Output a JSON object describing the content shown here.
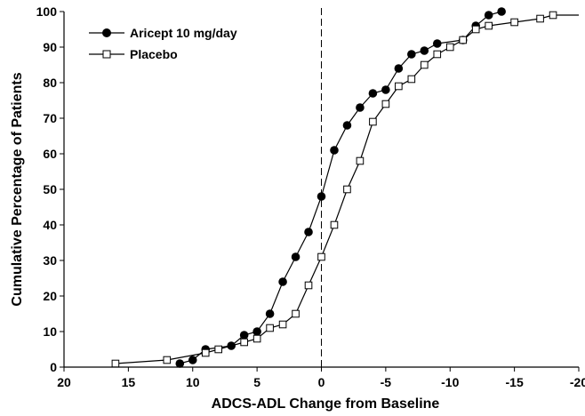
{
  "chart_data": {
    "type": "line",
    "xlabel": "ADCS-ADL Change from Baseline",
    "ylabel": "Cumulative Percentage of Patients",
    "xlim": [
      20,
      -20
    ],
    "ylim": [
      0,
      100
    ],
    "xticks": [
      20,
      15,
      10,
      5,
      0,
      -5,
      -10,
      -15,
      -20
    ],
    "yticks": [
      0,
      10,
      20,
      30,
      40,
      50,
      60,
      70,
      80,
      90,
      100
    ],
    "x_tick_labels": [
      "20",
      "15",
      "10",
      "5",
      "0",
      "-5",
      "-10",
      "-15",
      "-20"
    ],
    "y_tick_labels": [
      "0",
      "10",
      "20",
      "30",
      "40",
      "50",
      "60",
      "70",
      "80",
      "90",
      "100"
    ],
    "reference_line": {
      "x": 0,
      "style": "dashed"
    },
    "legend_position": "top-left",
    "series": [
      {
        "name": "Aricept 10 mg/day",
        "marker": "filled-circle",
        "x": [
          11,
          10,
          9,
          7,
          6,
          5,
          4,
          3,
          2,
          1,
          0,
          -1,
          -2,
          -3,
          -4,
          -5,
          -6,
          -7,
          -8,
          -9,
          -11,
          -12,
          -13,
          -14
        ],
        "y": [
          1,
          2,
          5,
          6,
          9,
          10,
          15,
          24,
          31,
          38,
          48,
          61,
          68,
          73,
          77,
          78,
          84,
          88,
          89,
          91,
          92,
          96,
          99,
          100
        ]
      },
      {
        "name": "Placebo",
        "marker": "open-square",
        "x": [
          16,
          12,
          9,
          8,
          6,
          5,
          4,
          3,
          2,
          1,
          0,
          -1,
          -2,
          -3,
          -4,
          -5,
          -6,
          -7,
          -8,
          -9,
          -10,
          -11,
          -12,
          -13,
          -15,
          -17,
          -18
        ],
        "y": [
          1,
          2,
          4,
          5,
          7,
          8,
          11,
          12,
          15,
          23,
          31,
          40,
          50,
          58,
          69,
          74,
          79,
          81,
          85,
          88,
          90,
          92,
          95,
          96,
          97,
          98,
          99
        ]
      }
    ]
  }
}
